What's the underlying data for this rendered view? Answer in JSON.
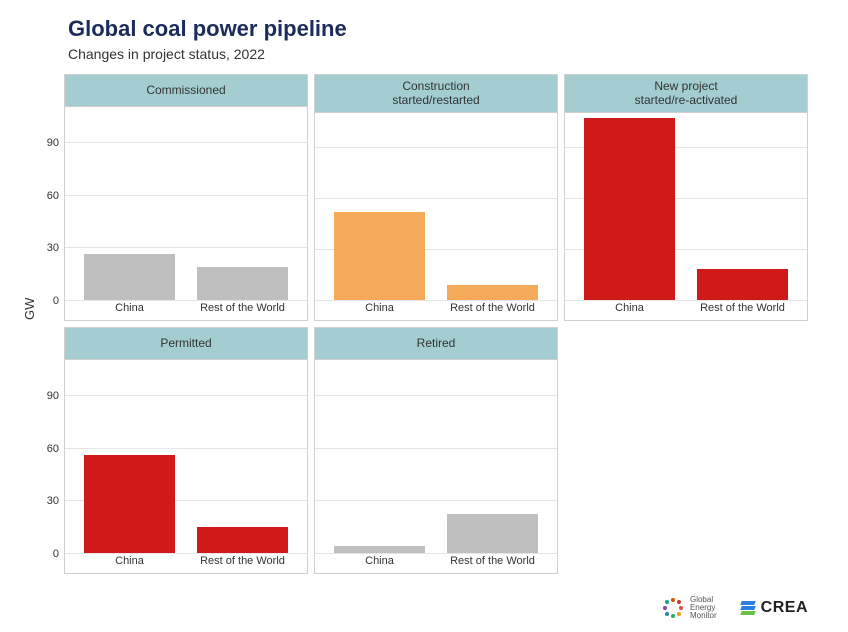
{
  "title": "Global coal power pipeline",
  "subtitle": "Changes in project status, 2022",
  "ylabel": "GW",
  "yaxis": {
    "min": 0,
    "max": 110,
    "ticks": [
      0,
      30,
      60,
      90
    ]
  },
  "categories": [
    "China",
    "Rest of the World"
  ],
  "panel_header_bg": "#a3cdd0",
  "colors": {
    "commissioned": "#bfbfbf",
    "construction": "#f5a95b",
    "newproject": "#d01919",
    "permitted": "#d01919",
    "retired": "#bfbfbf"
  },
  "panels": [
    {
      "key": "commissioned",
      "label": "Commissioned",
      "values": [
        26,
        19
      ]
    },
    {
      "key": "construction",
      "label": "Construction\nstarted/restarted",
      "values": [
        52,
        9
      ]
    },
    {
      "key": "newproject",
      "label": "New project\nstarted/re-activated",
      "values": [
        107,
        18
      ]
    },
    {
      "key": "permitted",
      "label": "Permitted",
      "values": [
        56,
        15
      ]
    },
    {
      "key": "retired",
      "label": "Retired",
      "values": [
        4,
        22
      ]
    }
  ],
  "footer": {
    "gem": {
      "lines": [
        "Global",
        "Energy",
        "Monitor"
      ],
      "dot_colors": [
        "#e74c3c",
        "#f39c12",
        "#27ae60",
        "#2980b9",
        "#8e44ad",
        "#16a085",
        "#d35400",
        "#c0392b"
      ]
    },
    "crea": {
      "text": "CREA",
      "stripe_colors": [
        "#2a7de1",
        "#2a7de1",
        "#6fbf44"
      ]
    }
  }
}
